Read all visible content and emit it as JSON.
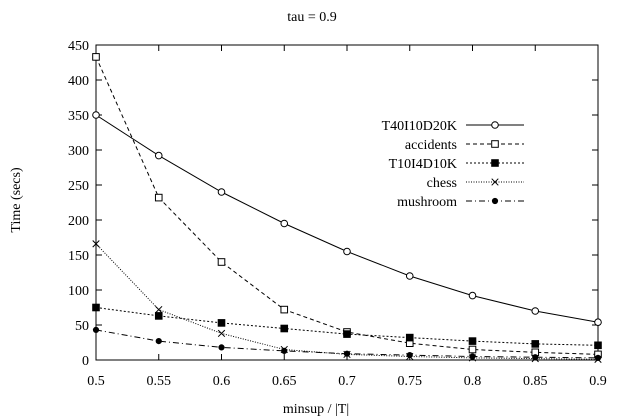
{
  "chart_data": {
    "type": "line",
    "title": "tau = 0.9",
    "xlabel": "minsup / |T|",
    "ylabel": "Time (secs)",
    "x": [
      0.5,
      0.55,
      0.6,
      0.65,
      0.7,
      0.75,
      0.8,
      0.85,
      0.9
    ],
    "xticks": [
      "0.5",
      "0.55",
      "0.6",
      "0.65",
      "0.7",
      "0.75",
      "0.8",
      "0.85",
      "0.9"
    ],
    "xlim": [
      0.5,
      0.9
    ],
    "ylim": [
      0,
      450
    ],
    "yticks": [
      "0",
      "50",
      "100",
      "150",
      "200",
      "250",
      "300",
      "350",
      "400",
      "450"
    ],
    "grid": false,
    "legend_position": "right",
    "series": [
      {
        "name": "T40I10D20K",
        "marker": "open-circle",
        "dash": "solid",
        "values": [
          350,
          292,
          240,
          195,
          155,
          120,
          92,
          70,
          54
        ]
      },
      {
        "name": "accidents",
        "marker": "open-square",
        "dash": "dashed",
        "values": [
          433,
          232,
          140,
          72,
          40,
          24,
          15,
          11,
          8
        ]
      },
      {
        "name": "T10I4D10K",
        "marker": "filled-square",
        "dash": "dotted",
        "values": [
          75,
          63,
          53,
          45,
          37,
          32,
          27,
          23,
          21
        ]
      },
      {
        "name": "chess",
        "marker": "cross",
        "dash": "fine-dotted",
        "values": [
          166,
          72,
          38,
          15,
          8,
          5,
          3,
          2,
          1
        ]
      },
      {
        "name": "mushroom",
        "marker": "filled-circle",
        "dash": "dash-dot",
        "values": [
          43,
          27,
          18,
          13,
          9,
          7,
          5,
          4,
          3
        ]
      }
    ]
  }
}
